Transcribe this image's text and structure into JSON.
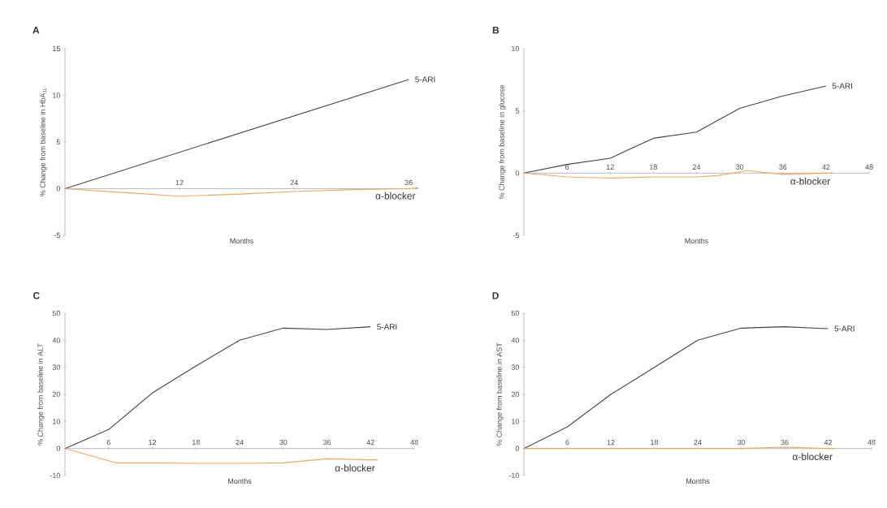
{
  "chart_data": [
    {
      "type": "line",
      "title": "A",
      "xlabel": "Months",
      "ylabel": "% Change from baseline in HbA$_{1c}$",
      "xlim": [
        0,
        37
      ],
      "xticks": [
        12,
        24,
        36
      ],
      "ylim": [
        -5,
        15
      ],
      "yticks": [
        -5,
        0,
        5,
        10,
        15
      ],
      "series": [
        {
          "name": "5-ARI",
          "color": "#444444",
          "x": [
            0,
            36
          ],
          "values": [
            0,
            11.7
          ]
        },
        {
          "name": "α-blocker",
          "color": "#f0a860",
          "x": [
            0,
            6,
            12,
            18,
            24,
            30,
            36,
            37
          ],
          "values": [
            0,
            -0.4,
            -0.8,
            -0.6,
            -0.3,
            -0.1,
            0,
            0.1
          ]
        }
      ]
    },
    {
      "type": "line",
      "title": "B",
      "xlabel": "Months",
      "ylabel": "% Change from baseline in glucose",
      "xlim": [
        0,
        48
      ],
      "xticks": [
        6,
        12,
        18,
        24,
        30,
        36,
        42,
        48
      ],
      "ylim": [
        -5,
        10
      ],
      "yticks": [
        -5,
        0,
        5,
        10
      ],
      "series": [
        {
          "name": "5-ARI",
          "color": "#444444",
          "x": [
            0,
            6,
            12,
            18,
            24,
            30,
            36,
            42
          ],
          "values": [
            0,
            0.7,
            1.2,
            2.8,
            3.3,
            5.2,
            6.2,
            7.0
          ]
        },
        {
          "name": "α-blocker",
          "color": "#f0a860",
          "x": [
            0,
            6,
            12,
            18,
            24,
            27,
            31,
            36,
            42,
            43
          ],
          "values": [
            0,
            -0.3,
            -0.4,
            -0.3,
            -0.3,
            -0.2,
            0.2,
            -0.1,
            0,
            0
          ]
        }
      ]
    },
    {
      "type": "line",
      "title": "C",
      "xlabel": "Months",
      "ylabel": "% Change from baseline in ALT",
      "xlim": [
        0,
        48
      ],
      "xticks": [
        6,
        12,
        18,
        24,
        30,
        36,
        42,
        48
      ],
      "ylim": [
        -10,
        50
      ],
      "yticks": [
        -10,
        0,
        10,
        20,
        30,
        40,
        50
      ],
      "series": [
        {
          "name": "5-ARI",
          "color": "#444444",
          "x": [
            0,
            6,
            12,
            18,
            24,
            30,
            36,
            42
          ],
          "values": [
            0,
            7,
            20.5,
            30.5,
            40,
            44.5,
            44,
            45
          ]
        },
        {
          "name": "α-blocker",
          "color": "#f0a860",
          "x": [
            0,
            6,
            7,
            12,
            18,
            24,
            30,
            36,
            42,
            43
          ],
          "values": [
            0,
            -4.5,
            -5.3,
            -5.3,
            -5.5,
            -5.5,
            -5.3,
            -3.8,
            -4.2,
            -4.2
          ]
        }
      ]
    },
    {
      "type": "line",
      "title": "D",
      "xlabel": "Months",
      "ylabel": "% Change from baseline in AST",
      "xlim": [
        0,
        48
      ],
      "xticks": [
        6,
        12,
        18,
        24,
        30,
        36,
        42,
        48
      ],
      "ylim": [
        -10,
        50
      ],
      "yticks": [
        -10,
        0,
        10,
        20,
        30,
        40,
        50
      ],
      "series": [
        {
          "name": "5-ARI",
          "color": "#444444",
          "x": [
            0,
            6,
            12,
            18,
            24,
            30,
            36,
            42
          ],
          "values": [
            0,
            8,
            20,
            30,
            40,
            44.5,
            45,
            44.3
          ]
        },
        {
          "name": "α-blocker",
          "color": "#f0a860",
          "x": [
            0,
            6,
            12,
            18,
            24,
            30,
            36,
            42,
            43
          ],
          "values": [
            0,
            0,
            0,
            0,
            0,
            0,
            0.5,
            0,
            0
          ]
        }
      ]
    }
  ]
}
